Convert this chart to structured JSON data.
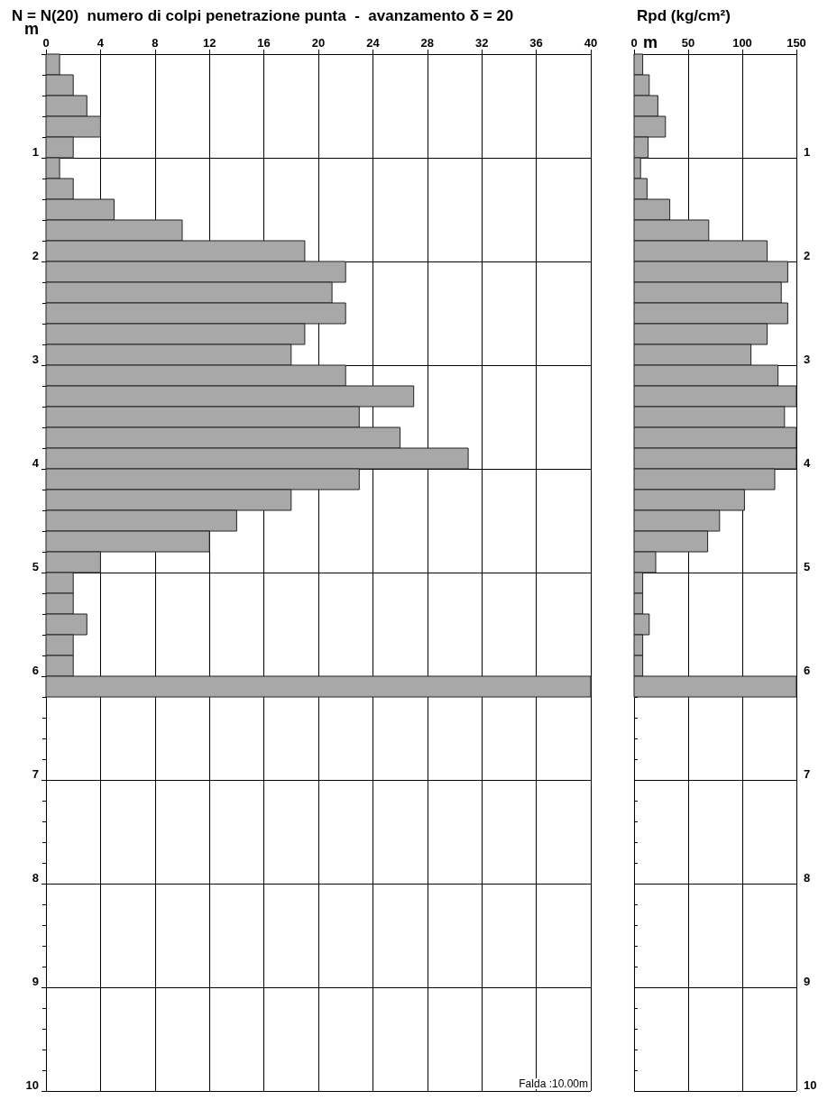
{
  "chart_data": [
    {
      "type": "histogram",
      "orientation": "horizontal",
      "title": "N = N(20)  numero di colpi penetrazione punta  -  avanzamento δ = 20",
      "ylabel": "m",
      "bins": [
        0,
        0.2,
        0.4,
        0.6,
        0.8,
        1,
        1.2,
        1.4,
        1.6,
        1.8,
        2,
        2.2,
        2.4,
        2.6,
        2.8,
        3,
        3.2,
        3.4,
        3.6,
        3.8,
        4,
        4.2,
        4.4,
        4.6,
        4.8,
        5,
        5.2,
        5.4,
        5.6,
        5.8,
        6,
        6.2
      ],
      "values": [
        1,
        2,
        3,
        4,
        2,
        1,
        2,
        5,
        10,
        19,
        22,
        21,
        22,
        19,
        18,
        22,
        27,
        23,
        26,
        31,
        23,
        18,
        14,
        12,
        4,
        2,
        2,
        3,
        2,
        2,
        40
      ],
      "color": "#a8a8a8",
      "xlim": [
        0,
        40
      ],
      "xticks": [
        0,
        4,
        8,
        12,
        16,
        20,
        24,
        28,
        32,
        36,
        40
      ],
      "ylim": [
        10,
        0
      ],
      "yticks": [
        {
          "value": 0,
          "label": null
        },
        1,
        2,
        3,
        4,
        5,
        6,
        7,
        8,
        9,
        10
      ],
      "grid": true,
      "annotations": [
        "Falda :10.00m"
      ]
    },
    {
      "type": "histogram",
      "orientation": "horizontal",
      "title": "Rpd (kg/cm²)",
      "ylabel": "m",
      "bins": [
        0,
        0.2,
        0.4,
        0.6,
        0.8,
        1,
        1.2,
        1.4,
        1.6,
        1.8,
        2,
        2.2,
        2.4,
        2.6,
        2.8,
        3,
        3.2,
        3.4,
        3.6,
        3.8,
        4,
        4.2,
        4.4,
        4.6,
        4.8,
        5,
        5.2,
        5.4,
        5.6,
        5.8,
        6,
        6.2
      ],
      "values": [
        8,
        14,
        22,
        29,
        13,
        6,
        12,
        33,
        69,
        123,
        142,
        136,
        142,
        123,
        108,
        133,
        150,
        139,
        150,
        150,
        130,
        102,
        79,
        68,
        20,
        8,
        8,
        14,
        8,
        8,
        150
      ],
      "color": "#a8a8a8",
      "xlim": [
        0,
        150
      ],
      "xticks": [
        0,
        50,
        100,
        150
      ],
      "ylim": [
        10,
        0
      ],
      "yticks": [
        {
          "value": 0,
          "label": null
        },
        1,
        2,
        3,
        4,
        5,
        6,
        7,
        8,
        9,
        10
      ],
      "grid": true
    }
  ]
}
